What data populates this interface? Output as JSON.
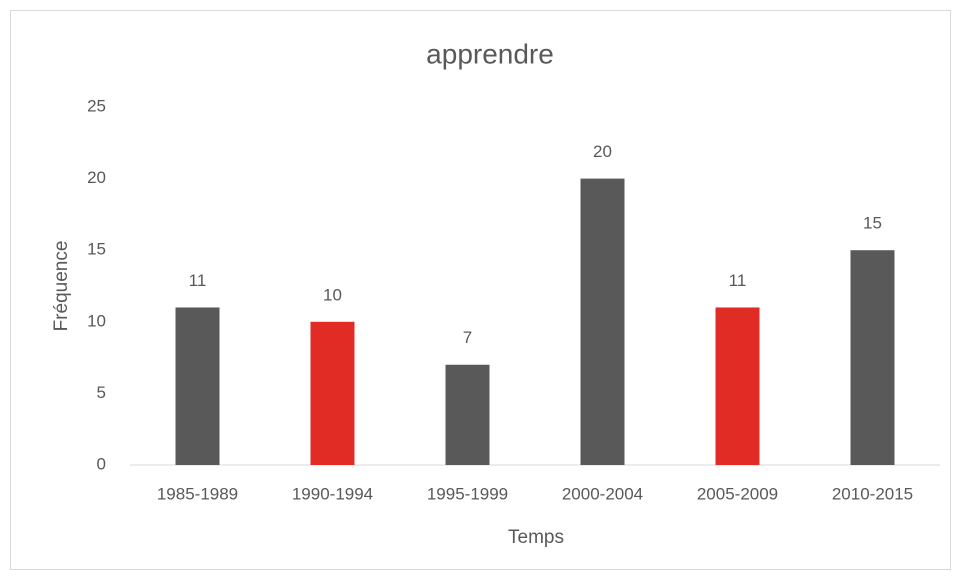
{
  "chart_data": {
    "type": "bar",
    "title": "apprendre",
    "x_label": "Temps",
    "y_label": "Fréquence",
    "categories": [
      "1985-1989",
      "1990-1994",
      "1995-1999",
      "2000-2004",
      "2005-2009",
      "2010-2015"
    ],
    "values": [
      11,
      10,
      7,
      20,
      11,
      15
    ],
    "colors": [
      "#595959",
      "#e12b25",
      "#595959",
      "#595959",
      "#e12b25",
      "#595959"
    ],
    "ylim": [
      0,
      25
    ],
    "yticks": [
      0,
      5,
      10,
      15,
      20,
      25
    ],
    "grid": false
  }
}
